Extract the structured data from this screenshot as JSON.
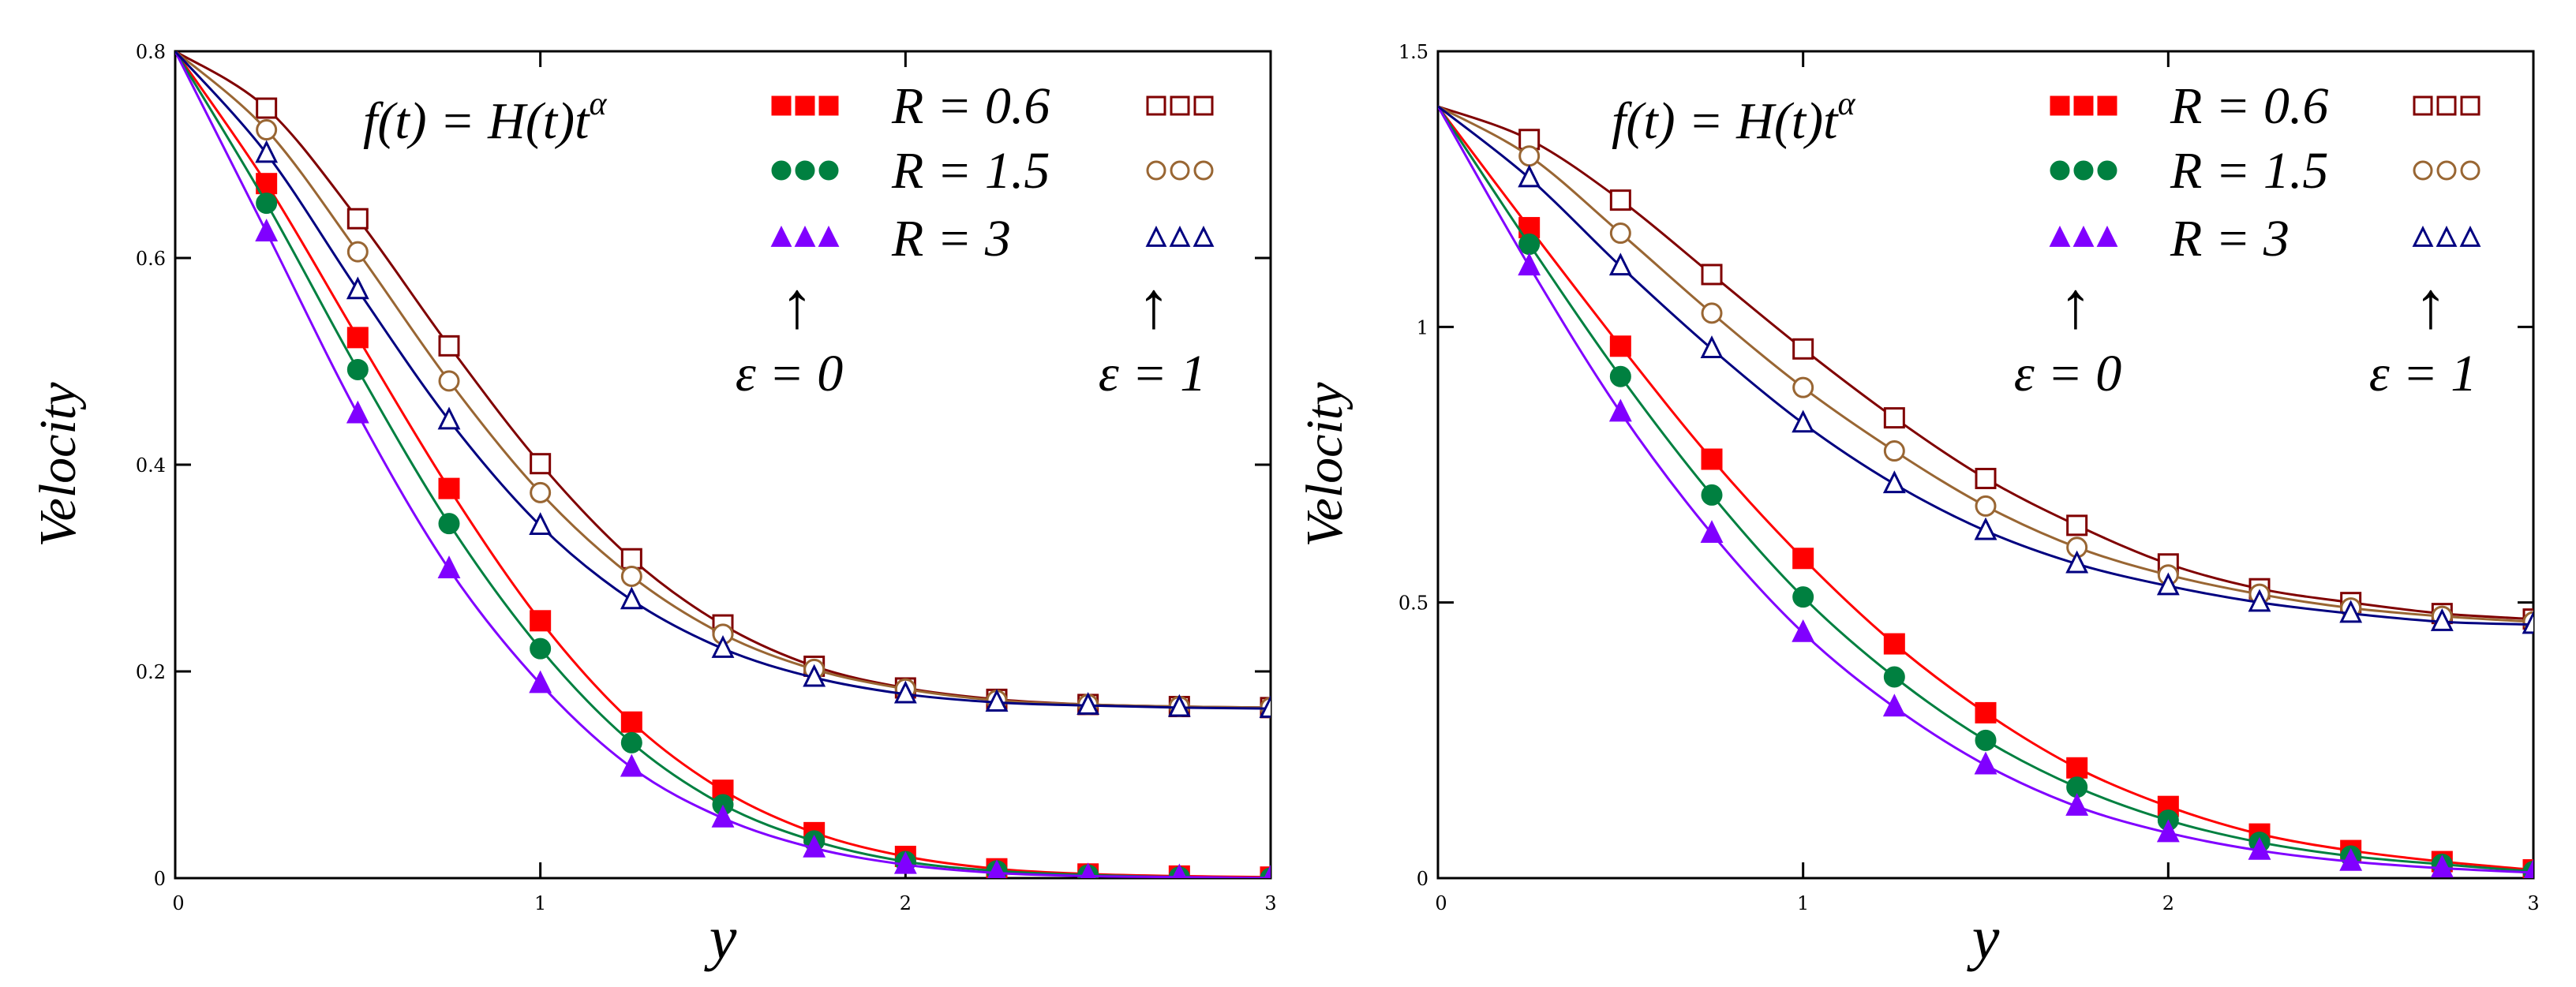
{
  "chart_data": [
    {
      "type": "line",
      "xlabel": "y",
      "ylabel": "Velocity",
      "xlim": [
        0,
        3
      ],
      "ylim": [
        0,
        0.8
      ],
      "x_ticks": [
        "0",
        "1",
        "2",
        "3"
      ],
      "y_ticks": [
        "0",
        "0.2",
        "0.4",
        "0.6",
        "0.8"
      ],
      "x_tick_values": [
        0,
        1,
        2,
        3
      ],
      "y_tick_values": [
        0,
        0.2,
        0.4,
        0.6,
        0.8
      ],
      "grid": false,
      "legend_position": "top-right",
      "annotation": {
        "formula_lhs": "f(t) = H(t)t",
        "formula_exp": "α",
        "eps0_arrow": "↑",
        "eps0_label": "ε = 0",
        "eps1_arrow": "↑",
        "eps1_label": "ε = 1"
      },
      "legend_labels": [
        "R = 0.6",
        "R = 1.5",
        "R = 3"
      ],
      "x": [
        0,
        0.25,
        0.5,
        0.75,
        1.0,
        1.25,
        1.5,
        1.75,
        2.0,
        2.25,
        2.5,
        2.75,
        3.0
      ],
      "series": [
        {
          "name": "R = 0.6, ε = 0",
          "marker": "square",
          "filled": true,
          "color": "#ff0000",
          "values": [
            0.8,
            0.672,
            0.523,
            0.377,
            0.249,
            0.151,
            0.085,
            0.044,
            0.021,
            0.009,
            0.004,
            0.002,
            0.001
          ]
        },
        {
          "name": "R = 1.5, ε = 0",
          "marker": "circle",
          "filled": true,
          "color": "#008040",
          "values": [
            0.8,
            0.653,
            0.492,
            0.343,
            0.222,
            0.131,
            0.071,
            0.036,
            0.016,
            0.007,
            0.003,
            0.001,
            0.0
          ]
        },
        {
          "name": "R = 3, ε = 0",
          "marker": "triangle",
          "filled": true,
          "color": "#8000ff",
          "values": [
            0.8,
            0.625,
            0.449,
            0.299,
            0.188,
            0.107,
            0.058,
            0.029,
            0.013,
            0.005,
            0.002,
            0.001,
            0.0
          ]
        },
        {
          "name": "R = 0.6, ε = 1",
          "marker": "square",
          "filled": false,
          "color": "#800000",
          "values": [
            0.8,
            0.745,
            0.638,
            0.515,
            0.401,
            0.309,
            0.245,
            0.205,
            0.184,
            0.173,
            0.168,
            0.166,
            0.165
          ]
        },
        {
          "name": "R = 1.5, ε = 1",
          "marker": "circle",
          "filled": false,
          "color": "#996633",
          "values": [
            0.8,
            0.724,
            0.606,
            0.481,
            0.373,
            0.292,
            0.236,
            0.202,
            0.183,
            0.172,
            0.168,
            0.166,
            0.165
          ]
        },
        {
          "name": "R = 3, ε = 1",
          "marker": "triangle",
          "filled": false,
          "color": "#000080",
          "values": [
            0.8,
            0.701,
            0.569,
            0.443,
            0.341,
            0.269,
            0.222,
            0.194,
            0.178,
            0.17,
            0.167,
            0.165,
            0.164
          ]
        }
      ]
    },
    {
      "type": "line",
      "xlabel": "y",
      "ylabel": "Velocity",
      "xlim": [
        0,
        3
      ],
      "ylim": [
        0,
        1.5
      ],
      "x_ticks": [
        "0",
        "1",
        "2",
        "3"
      ],
      "y_ticks": [
        "0",
        "0.5",
        "1",
        "1.5"
      ],
      "x_tick_values": [
        0,
        1,
        2,
        3
      ],
      "y_tick_values": [
        0,
        0.5,
        1,
        1.5
      ],
      "grid": false,
      "legend_position": "top-right",
      "annotation": {
        "formula_lhs": "f(t) = H(t)t",
        "formula_exp": "α",
        "eps0_arrow": "↑",
        "eps0_label": "ε = 0",
        "eps1_arrow": "↑",
        "eps1_label": "ε = 1"
      },
      "legend_labels": [
        "R = 0.6",
        "R = 1.5",
        "R = 3"
      ],
      "x": [
        0,
        0.25,
        0.5,
        0.75,
        1.0,
        1.25,
        1.5,
        1.75,
        2.0,
        2.25,
        2.5,
        2.75,
        3.0
      ],
      "series": [
        {
          "name": "R = 0.6, ε = 0",
          "marker": "square",
          "filled": true,
          "color": "#ff0000",
          "values": [
            1.4,
            1.18,
            0.965,
            0.76,
            0.58,
            0.425,
            0.3,
            0.2,
            0.13,
            0.08,
            0.05,
            0.03,
            0.015
          ]
        },
        {
          "name": "R = 1.5, ε = 0",
          "marker": "circle",
          "filled": true,
          "color": "#008040",
          "values": [
            1.4,
            1.15,
            0.91,
            0.695,
            0.51,
            0.365,
            0.25,
            0.165,
            0.105,
            0.065,
            0.04,
            0.025,
            0.012
          ]
        },
        {
          "name": "R = 3, ε = 0",
          "marker": "triangle",
          "filled": true,
          "color": "#8000ff",
          "values": [
            1.4,
            1.11,
            0.845,
            0.625,
            0.445,
            0.31,
            0.205,
            0.13,
            0.082,
            0.05,
            0.03,
            0.018,
            0.01
          ]
        },
        {
          "name": "R = 0.6, ε = 1",
          "marker": "square",
          "filled": false,
          "color": "#800000",
          "values": [
            1.4,
            1.34,
            1.23,
            1.095,
            0.96,
            0.835,
            0.725,
            0.64,
            0.57,
            0.525,
            0.5,
            0.48,
            0.47
          ]
        },
        {
          "name": "R = 1.5, ε = 1",
          "marker": "circle",
          "filled": false,
          "color": "#996633",
          "values": [
            1.4,
            1.31,
            1.17,
            1.025,
            0.89,
            0.775,
            0.675,
            0.6,
            0.55,
            0.515,
            0.49,
            0.475,
            0.465
          ]
        },
        {
          "name": "R = 3, ε = 1",
          "marker": "triangle",
          "filled": false,
          "color": "#000080",
          "values": [
            1.4,
            1.27,
            1.11,
            0.96,
            0.825,
            0.715,
            0.63,
            0.57,
            0.53,
            0.5,
            0.48,
            0.465,
            0.46
          ]
        }
      ]
    }
  ]
}
